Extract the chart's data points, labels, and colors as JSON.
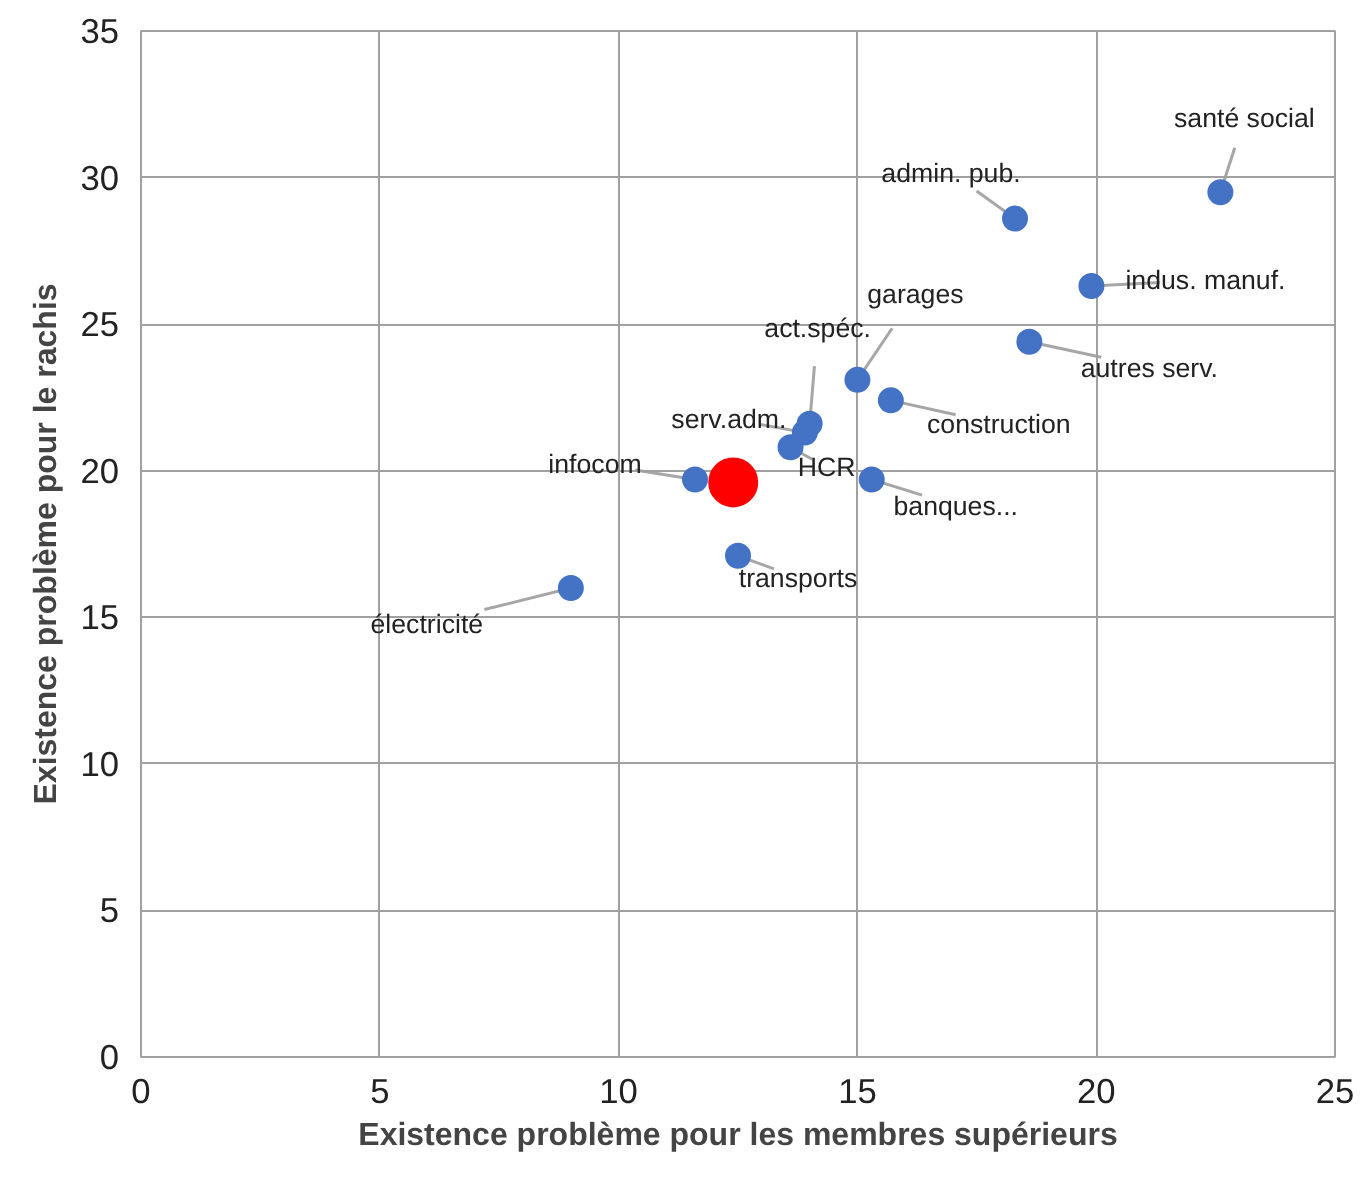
{
  "chart_data": {
    "type": "scatter",
    "xlabel": "Existence problème pour les membres supérieurs",
    "ylabel": "Existence problème pour le rachis",
    "xlim": [
      0,
      25
    ],
    "ylim": [
      0,
      35
    ],
    "xticks": [
      0,
      5,
      10,
      15,
      20,
      25
    ],
    "yticks": [
      0,
      5,
      10,
      15,
      20,
      25,
      30,
      35
    ],
    "grid": true,
    "marker": "circle",
    "series": [
      {
        "color": "#4472c4",
        "x": [
          22.6,
          18.3,
          19.9,
          18.6,
          15.0,
          15.7,
          14.0,
          13.9,
          13.6,
          15.3,
          11.6,
          12.5,
          9.0
        ],
        "values": [
          29.5,
          28.6,
          26.3,
          24.4,
          23.1,
          22.4,
          21.6,
          21.3,
          20.8,
          19.7,
          19.7,
          17.1,
          16.0
        ]
      },
      {
        "color": "#ff0000",
        "x": [
          12.4
        ],
        "values": [
          19.6
        ],
        "sizes": [
          1
        ]
      }
    ],
    "annotations": [
      {
        "text": "santé social",
        "x": 22.6,
        "y": 29.5
      },
      {
        "text": "admin. pub.",
        "x": 18.3,
        "y": 28.6
      },
      {
        "text": "indus. manuf.",
        "x": 19.9,
        "y": 26.3
      },
      {
        "text": "autres serv.",
        "x": 18.6,
        "y": 24.4
      },
      {
        "text": "garages",
        "x": 15.0,
        "y": 23.1
      },
      {
        "text": "construction",
        "x": 15.7,
        "y": 22.4
      },
      {
        "text": "act.spéc.",
        "x": 14.0,
        "y": 21.6
      },
      {
        "text": "serv.adm.",
        "x": 13.9,
        "y": 21.3
      },
      {
        "text": "HCR",
        "x": 13.6,
        "y": 20.8
      },
      {
        "text": "banques...",
        "x": 15.3,
        "y": 19.7
      },
      {
        "text": "infocom",
        "x": 11.6,
        "y": 19.7
      },
      {
        "text": "transports",
        "x": 12.5,
        "y": 17.1
      },
      {
        "text": "électricité",
        "x": 9.0,
        "y": 16.0
      }
    ]
  }
}
